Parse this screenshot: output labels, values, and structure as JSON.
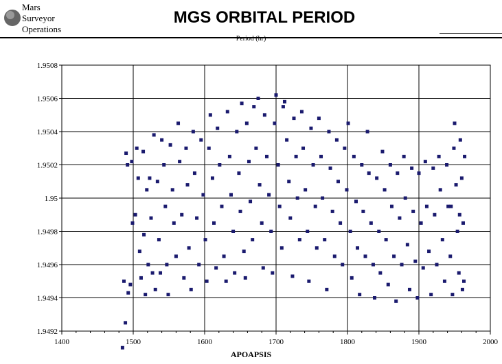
{
  "header": {
    "logo_lines": [
      "Mars",
      "Surveyor",
      "Operations"
    ],
    "title": "MGS ORBITAL PERIOD",
    "subtitle": "Period (hr)"
  },
  "chart_data": {
    "type": "scatter",
    "title": "MGS ORBITAL PERIOD",
    "xlabel": "APOAPSIS",
    "ylabel": "Period (hr)",
    "xlim": [
      1400,
      2000
    ],
    "ylim": [
      1.9492,
      1.9508
    ],
    "x_ticks": [
      "1400",
      "1500",
      "1600",
      "1700",
      "1800",
      "1900",
      "2000"
    ],
    "y_ticks": [
      "1.9492",
      "1.9494",
      "1.9496",
      "1.9498",
      "1.95",
      "1.9502",
      "1.9504",
      "1.9506",
      "1.9508"
    ],
    "grid": true,
    "marker_color": "#1a1a6e",
    "points": [
      [
        1485,
        1.9491
      ],
      [
        1487,
        1.9495
      ],
      [
        1489,
        1.94925
      ],
      [
        1490,
        1.95027
      ],
      [
        1492,
        1.9502
      ],
      [
        1493,
        1.94943
      ],
      [
        1496,
        1.94948
      ],
      [
        1498,
        1.95022
      ],
      [
        1499,
        1.94985
      ],
      [
        1503,
        1.9499
      ],
      [
        1505,
        1.9503
      ],
      [
        1507,
        1.95012
      ],
      [
        1509,
        1.94968
      ],
      [
        1511,
        1.94952
      ],
      [
        1514,
        1.95028
      ],
      [
        1515,
        1.94978
      ],
      [
        1517,
        1.94942
      ],
      [
        1519,
        1.95005
      ],
      [
        1521,
        1.9496
      ],
      [
        1523,
        1.95012
      ],
      [
        1525,
        1.94988
      ],
      [
        1527,
        1.94955
      ],
      [
        1529,
        1.95038
      ],
      [
        1531,
        1.94945
      ],
      [
        1534,
        1.9501
      ],
      [
        1536,
        1.94975
      ],
      [
        1538,
        1.94955
      ],
      [
        1540,
        1.95035
      ],
      [
        1543,
        1.9502
      ],
      [
        1545,
        1.94995
      ],
      [
        1547,
        1.9496
      ],
      [
        1549,
        1.94942
      ],
      [
        1552,
        1.95032
      ],
      [
        1555,
        1.95005
      ],
      [
        1557,
        1.94985
      ],
      [
        1560,
        1.94965
      ],
      [
        1563,
        1.95045
      ],
      [
        1565,
        1.95022
      ],
      [
        1568,
        1.9499
      ],
      [
        1571,
        1.94952
      ],
      [
        1574,
        1.9503
      ],
      [
        1576,
        1.95008
      ],
      [
        1578,
        1.9497
      ],
      [
        1581,
        1.94945
      ],
      [
        1584,
        1.9504
      ],
      [
        1586,
        1.95015
      ],
      [
        1589,
        1.94988
      ],
      [
        1592,
        1.9496
      ],
      [
        1595,
        1.95035
      ],
      [
        1598,
        1.95002
      ],
      [
        1601,
        1.94975
      ],
      [
        1603,
        1.9495
      ],
      [
        1606,
        1.9503
      ],
      [
        1608,
        1.9505
      ],
      [
        1611,
        1.95012
      ],
      [
        1613,
        1.94985
      ],
      [
        1616,
        1.94958
      ],
      [
        1618,
        1.95042
      ],
      [
        1621,
        1.9502
      ],
      [
        1624,
        1.94995
      ],
      [
        1627,
        1.94965
      ],
      [
        1630,
        1.9495
      ],
      [
        1632,
        1.95052
      ],
      [
        1635,
        1.95025
      ],
      [
        1637,
        1.95002
      ],
      [
        1640,
        1.9498
      ],
      [
        1642,
        1.94955
      ],
      [
        1645,
        1.9504
      ],
      [
        1648,
        1.95015
      ],
      [
        1650,
        1.94992
      ],
      [
        1652,
        1.95057
      ],
      [
        1655,
        1.94968
      ],
      [
        1657,
        1.94952
      ],
      [
        1659,
        1.95045
      ],
      [
        1662,
        1.95022
      ],
      [
        1664,
        1.94998
      ],
      [
        1667,
        1.94975
      ],
      [
        1669,
        1.95055
      ],
      [
        1672,
        1.9503
      ],
      [
        1675,
        1.9506
      ],
      [
        1677,
        1.95008
      ],
      [
        1680,
        1.94985
      ],
      [
        1682,
        1.94958
      ],
      [
        1684,
        1.9505
      ],
      [
        1687,
        1.95025
      ],
      [
        1690,
        1.95002
      ],
      [
        1693,
        1.9498
      ],
      [
        1695,
        1.94955
      ],
      [
        1698,
        1.95045
      ],
      [
        1700,
        1.95062
      ],
      [
        1703,
        1.9502
      ],
      [
        1705,
        1.94995
      ],
      [
        1708,
        1.9497
      ],
      [
        1710,
        1.95055
      ],
      [
        1712,
        1.95058
      ],
      [
        1715,
        1.95035
      ],
      [
        1718,
        1.9501
      ],
      [
        1720,
        1.94988
      ],
      [
        1723,
        1.94953
      ],
      [
        1725,
        1.95048
      ],
      [
        1728,
        1.95025
      ],
      [
        1730,
        1.95
      ],
      [
        1733,
        1.94975
      ],
      [
        1736,
        1.95052
      ],
      [
        1738,
        1.9503
      ],
      [
        1741,
        1.95005
      ],
      [
        1744,
        1.9498
      ],
      [
        1746,
        1.9495
      ],
      [
        1749,
        1.95042
      ],
      [
        1752,
        1.9502
      ],
      [
        1755,
        1.94995
      ],
      [
        1757,
        1.9497
      ],
      [
        1760,
        1.95048
      ],
      [
        1763,
        1.95025
      ],
      [
        1765,
        1.95
      ],
      [
        1768,
        1.94975
      ],
      [
        1771,
        1.94945
      ],
      [
        1774,
        1.9504
      ],
      [
        1776,
        1.95018
      ],
      [
        1779,
        1.94992
      ],
      [
        1782,
        1.94965
      ],
      [
        1785,
        1.95035
      ],
      [
        1787,
        1.9501
      ],
      [
        1790,
        1.94985
      ],
      [
        1793,
        1.9496
      ],
      [
        1796,
        1.9503
      ],
      [
        1799,
        1.95005
      ],
      [
        1801,
        1.95045
      ],
      [
        1804,
        1.9498
      ],
      [
        1806,
        1.94952
      ],
      [
        1809,
        1.95025
      ],
      [
        1812,
        1.94998
      ],
      [
        1814,
        1.9497
      ],
      [
        1817,
        1.94942
      ],
      [
        1820,
        1.9502
      ],
      [
        1822,
        1.94992
      ],
      [
        1825,
        1.94965
      ],
      [
        1828,
        1.9504
      ],
      [
        1830,
        1.95015
      ],
      [
        1833,
        1.94985
      ],
      [
        1836,
        1.9496
      ],
      [
        1838,
        1.9494
      ],
      [
        1841,
        1.95012
      ],
      [
        1844,
        1.9498
      ],
      [
        1846,
        1.94955
      ],
      [
        1849,
        1.95028
      ],
      [
        1852,
        1.95005
      ],
      [
        1854,
        1.94975
      ],
      [
        1857,
        1.94948
      ],
      [
        1860,
        1.9502
      ],
      [
        1862,
        1.94995
      ],
      [
        1865,
        1.94965
      ],
      [
        1868,
        1.94938
      ],
      [
        1870,
        1.95015
      ],
      [
        1873,
        1.94988
      ],
      [
        1876,
        1.9496
      ],
      [
        1879,
        1.95025
      ],
      [
        1881,
        1.95
      ],
      [
        1884,
        1.94972
      ],
      [
        1887,
        1.94945
      ],
      [
        1890,
        1.95018
      ],
      [
        1892,
        1.94992
      ],
      [
        1895,
        1.94962
      ],
      [
        1898,
        1.9494
      ],
      [
        1900,
        1.95015
      ],
      [
        1903,
        1.94985
      ],
      [
        1906,
        1.94958
      ],
      [
        1909,
        1.95022
      ],
      [
        1911,
        1.94995
      ],
      [
        1914,
        1.94968
      ],
      [
        1917,
        1.94942
      ],
      [
        1920,
        1.95018
      ],
      [
        1922,
        1.9499
      ],
      [
        1925,
        1.9496
      ],
      [
        1928,
        1.95025
      ],
      [
        1930,
        1.95005
      ],
      [
        1933,
        1.94975
      ],
      [
        1936,
        1.9495
      ],
      [
        1939,
        1.9502
      ],
      [
        1941,
        1.94995
      ],
      [
        1944,
        1.94965
      ],
      [
        1947,
        1.94942
      ],
      [
        1949,
        1.9503
      ],
      [
        1952,
        1.95008
      ],
      [
        1954,
        1.9498
      ],
      [
        1956,
        1.94955
      ],
      [
        1958,
        1.95035
      ],
      [
        1960,
        1.95012
      ],
      [
        1962,
        1.94985
      ],
      [
        1963,
        1.9495
      ],
      [
        1964,
        1.95025
      ],
      [
        1961,
        1.94945
      ],
      [
        1957,
        1.9499
      ],
      [
        1950,
        1.95045
      ],
      [
        1945,
        1.94995
      ]
    ]
  }
}
